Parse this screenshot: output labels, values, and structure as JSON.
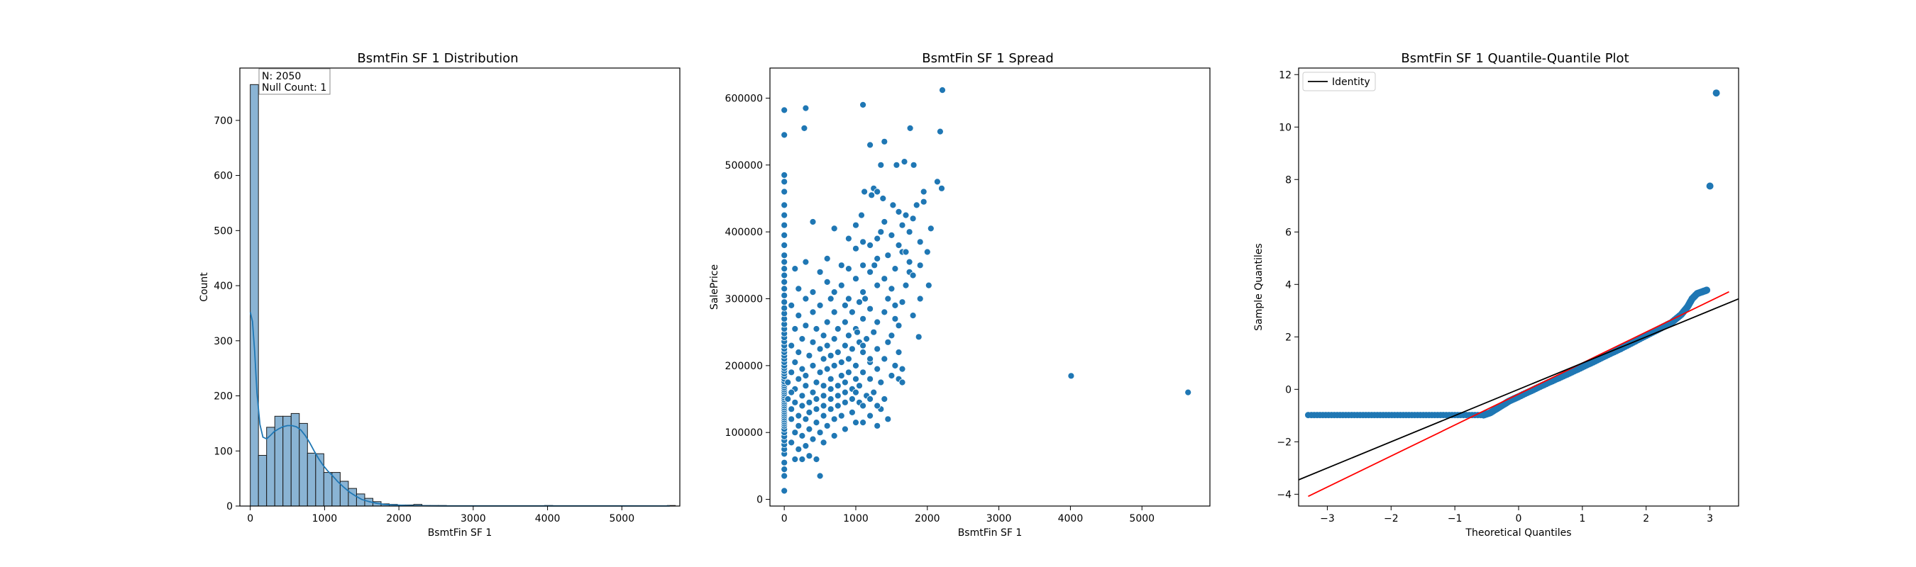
{
  "colors": {
    "accent": "#1f77b4",
    "hist_fill": "#8ab4d4",
    "kde": "#1f77b4",
    "identity": "#000000",
    "fit_line": "#ff0000"
  },
  "chart_data": [
    {
      "type": "bar",
      "title": "BsmtFin SF 1 Distribution",
      "xlabel": "BsmtFin SF 1",
      "ylabel": "Count",
      "xlim": [
        -140,
        5780
      ],
      "ylim": [
        0,
        795
      ],
      "xticks": [
        0,
        1000,
        2000,
        3000,
        4000,
        5000
      ],
      "yticks": [
        0,
        100,
        200,
        300,
        400,
        500,
        600,
        700
      ],
      "annotation": {
        "line1": "N: 2050",
        "line2": "Null Count: 1"
      },
      "bins": {
        "start": 0,
        "width": 110,
        "counts": [
          765,
          92,
          143,
          163,
          163,
          168,
          150,
          96,
          95,
          61,
          61,
          45,
          32,
          22,
          14,
          8,
          4,
          3,
          2,
          2,
          3,
          1,
          1,
          1,
          0,
          0,
          0,
          0,
          0,
          0,
          0,
          0,
          0,
          0,
          0,
          0,
          1,
          0,
          0,
          0,
          0,
          0,
          0,
          0,
          0,
          0,
          0,
          0,
          0,
          0,
          0,
          1
        ]
      },
      "kde": {
        "x": [
          0,
          30,
          60,
          90,
          130,
          170,
          220,
          270,
          320,
          380,
          440,
          500,
          560,
          620,
          680,
          740,
          800,
          860,
          920,
          980,
          1040,
          1100,
          1180,
          1260,
          1340,
          1420,
          1500,
          1600,
          1700,
          1800,
          1900,
          2000,
          2100,
          2200,
          2400,
          2600,
          3000,
          3500,
          4000,
          4500,
          5000,
          5644
        ],
        "y": [
          352,
          335,
          280,
          205,
          148,
          125,
          122,
          128,
          135,
          140,
          144,
          146,
          146,
          144,
          138,
          128,
          115,
          100,
          86,
          74,
          64,
          56,
          44,
          34,
          25,
          18,
          12,
          8,
          5,
          3,
          2,
          1.5,
          1,
          0.7,
          0.4,
          0.3,
          0.2,
          0.2,
          0.3,
          0.2,
          0.2,
          0.1
        ]
      }
    },
    {
      "type": "scatter",
      "title": "BsmtFin SF 1 Spread",
      "xlabel": "BsmtFin SF 1",
      "ylabel": "SalePrice",
      "xlim": [
        -200,
        5950
      ],
      "ylim": [
        -10000,
        645000
      ],
      "xticks": [
        0,
        1000,
        2000,
        3000,
        4000,
        5000
      ],
      "yticks": [
        0,
        100000,
        200000,
        300000,
        400000,
        500000,
        600000
      ],
      "zero_column_y": [
        12789,
        35000,
        45000,
        55000,
        68000,
        75000,
        82000,
        88000,
        94000,
        100000,
        105000,
        110000,
        113000,
        116000,
        119000,
        122000,
        125000,
        128000,
        131000,
        134000,
        137000,
        140000,
        143000,
        146000,
        149000,
        152000,
        155000,
        158000,
        161000,
        164000,
        167000,
        170000,
        173000,
        176000,
        180000,
        184000,
        188000,
        192000,
        196000,
        200000,
        205000,
        210000,
        215000,
        220000,
        225000,
        230000,
        236000,
        242000,
        248000,
        255000,
        262000,
        270000,
        278000,
        286000,
        295000,
        305000,
        315000,
        325000,
        335000,
        345000,
        355000,
        365000,
        380000,
        395000,
        410000,
        425000,
        440000,
        460000,
        475000,
        485000,
        545000,
        582000
      ],
      "points": [
        [
          300,
          585000
        ],
        [
          280,
          555000
        ],
        [
          1100,
          590000
        ],
        [
          2210,
          612000
        ],
        [
          2180,
          550000
        ],
        [
          1760,
          555000
        ],
        [
          1400,
          535000
        ],
        [
          1200,
          530000
        ],
        [
          1570,
          500000
        ],
        [
          1350,
          500000
        ],
        [
          1810,
          500000
        ],
        [
          1680,
          505000
        ],
        [
          2140,
          475000
        ],
        [
          2200,
          465000
        ],
        [
          1950,
          445000
        ],
        [
          1950,
          460000
        ],
        [
          1850,
          440000
        ],
        [
          1250,
          465000
        ],
        [
          1300,
          460000
        ],
        [
          1120,
          460000
        ],
        [
          1220,
          455000
        ],
        [
          1380,
          450000
        ],
        [
          1520,
          440000
        ],
        [
          1600,
          430000
        ],
        [
          1700,
          425000
        ],
        [
          1800,
          420000
        ],
        [
          1400,
          415000
        ],
        [
          1650,
          410000
        ],
        [
          1080,
          425000
        ],
        [
          400,
          415000
        ],
        [
          1000,
          410000
        ],
        [
          700,
          405000
        ],
        [
          2050,
          405000
        ],
        [
          1750,
          400000
        ],
        [
          1500,
          395000
        ],
        [
          1900,
          385000
        ],
        [
          1300,
          390000
        ],
        [
          1100,
          385000
        ],
        [
          900,
          390000
        ],
        [
          1200,
          380000
        ],
        [
          1650,
          370000
        ],
        [
          1000,
          375000
        ],
        [
          1450,
          365000
        ],
        [
          1300,
          360000
        ],
        [
          1750,
          355000
        ],
        [
          1100,
          350000
        ],
        [
          1550,
          345000
        ],
        [
          300,
          355000
        ],
        [
          150,
          345000
        ],
        [
          500,
          340000
        ],
        [
          900,
          345000
        ],
        [
          1200,
          340000
        ],
        [
          1400,
          330000
        ],
        [
          1700,
          320000
        ],
        [
          1000,
          330000
        ],
        [
          600,
          325000
        ],
        [
          800,
          320000
        ],
        [
          1300,
          320000
        ],
        [
          1500,
          315000
        ],
        [
          200,
          315000
        ],
        [
          400,
          310000
        ],
        [
          700,
          310000
        ],
        [
          1100,
          310000
        ],
        [
          1900,
          300000
        ],
        [
          1650,
          295000
        ],
        [
          1550,
          290000
        ],
        [
          1050,
          295000
        ],
        [
          650,
          300000
        ],
        [
          300,
          300000
        ],
        [
          100,
          290000
        ],
        [
          500,
          290000
        ],
        [
          850,
          290000
        ],
        [
          1200,
          285000
        ],
        [
          1400,
          280000
        ],
        [
          1800,
          275000
        ],
        [
          950,
          280000
        ],
        [
          700,
          280000
        ],
        [
          400,
          280000
        ],
        [
          200,
          275000
        ],
        [
          1100,
          270000
        ],
        [
          1300,
          265000
        ],
        [
          1600,
          260000
        ],
        [
          850,
          265000
        ],
        [
          600,
          265000
        ],
        [
          300,
          260000
        ],
        [
          150,
          255000
        ],
        [
          450,
          255000
        ],
        [
          750,
          255000
        ],
        [
          1000,
          255000
        ],
        [
          1250,
          250000
        ],
        [
          1500,
          245000
        ],
        [
          1880,
          243000
        ],
        [
          550,
          245000
        ],
        [
          900,
          245000
        ],
        [
          250,
          240000
        ],
        [
          700,
          240000
        ],
        [
          1150,
          240000
        ],
        [
          1450,
          235000
        ],
        [
          1050,
          235000
        ],
        [
          400,
          235000
        ],
        [
          100,
          230000
        ],
        [
          600,
          230000
        ],
        [
          850,
          230000
        ],
        [
          1300,
          225000
        ],
        [
          1600,
          220000
        ],
        [
          500,
          225000
        ],
        [
          950,
          225000
        ],
        [
          200,
          220000
        ],
        [
          750,
          220000
        ],
        [
          1100,
          220000
        ],
        [
          350,
          215000
        ],
        [
          650,
          215000
        ],
        [
          1400,
          210000
        ],
        [
          900,
          210000
        ],
        [
          1200,
          205000
        ],
        [
          550,
          210000
        ],
        [
          150,
          205000
        ],
        [
          800,
          205000
        ],
        [
          1550,
          200000
        ],
        [
          1650,
          195000
        ],
        [
          1000,
          200000
        ],
        [
          400,
          200000
        ],
        [
          700,
          200000
        ],
        [
          250,
          195000
        ],
        [
          1300,
          195000
        ],
        [
          600,
          195000
        ],
        [
          900,
          190000
        ],
        [
          100,
          190000
        ],
        [
          500,
          190000
        ],
        [
          1100,
          190000
        ],
        [
          1500,
          185000
        ],
        [
          800,
          185000
        ],
        [
          300,
          185000
        ],
        [
          1200,
          180000
        ],
        [
          650,
          180000
        ],
        [
          1000,
          180000
        ],
        [
          200,
          180000
        ],
        [
          450,
          175000
        ],
        [
          850,
          175000
        ],
        [
          1350,
          175000
        ],
        [
          50,
          175000
        ],
        [
          550,
          170000
        ],
        [
          750,
          170000
        ],
        [
          1050,
          170000
        ],
        [
          300,
          170000
        ],
        [
          150,
          165000
        ],
        [
          950,
          165000
        ],
        [
          650,
          165000
        ],
        [
          400,
          160000
        ],
        [
          1250,
          160000
        ],
        [
          850,
          160000
        ],
        [
          100,
          160000
        ],
        [
          550,
          155000
        ],
        [
          750,
          155000
        ],
        [
          250,
          155000
        ],
        [
          1150,
          155000
        ],
        [
          450,
          150000
        ],
        [
          950,
          150000
        ],
        [
          650,
          150000
        ],
        [
          50,
          150000
        ],
        [
          350,
          145000
        ],
        [
          850,
          145000
        ],
        [
          150,
          145000
        ],
        [
          1050,
          145000
        ],
        [
          550,
          140000
        ],
        [
          250,
          140000
        ],
        [
          750,
          140000
        ],
        [
          450,
          135000
        ],
        [
          1350,
          135000
        ],
        [
          100,
          135000
        ],
        [
          650,
          135000
        ],
        [
          950,
          130000
        ],
        [
          350,
          130000
        ],
        [
          200,
          125000
        ],
        [
          550,
          125000
        ],
        [
          800,
          125000
        ],
        [
          1200,
          125000
        ],
        [
          300,
          120000
        ],
        [
          100,
          120000
        ],
        [
          700,
          120000
        ],
        [
          450,
          115000
        ],
        [
          1000,
          115000
        ],
        [
          200,
          110000
        ],
        [
          600,
          110000
        ],
        [
          1300,
          110000
        ],
        [
          350,
          105000
        ],
        [
          850,
          105000
        ],
        [
          150,
          100000
        ],
        [
          500,
          100000
        ],
        [
          250,
          95000
        ],
        [
          700,
          95000
        ],
        [
          400,
          90000
        ],
        [
          100,
          85000
        ],
        [
          1100,
          115000
        ],
        [
          300,
          80000
        ],
        [
          550,
          85000
        ],
        [
          200,
          75000
        ],
        [
          350,
          65000
        ],
        [
          250,
          60000
        ],
        [
          450,
          60000
        ],
        [
          150,
          60000
        ],
        [
          500,
          35000
        ],
        [
          1020,
          250000
        ],
        [
          1130,
          300000
        ],
        [
          1260,
          350000
        ],
        [
          1350,
          400000
        ],
        [
          1600,
          380000
        ],
        [
          1700,
          370000
        ],
        [
          1450,
          300000
        ],
        [
          1550,
          270000
        ],
        [
          1100,
          230000
        ],
        [
          1200,
          210000
        ],
        [
          800,
          350000
        ],
        [
          600,
          360000
        ],
        [
          900,
          300000
        ],
        [
          1750,
          340000
        ],
        [
          1800,
          335000
        ],
        [
          1000,
          160000
        ],
        [
          1100,
          140000
        ],
        [
          1200,
          150000
        ],
        [
          1300,
          140000
        ],
        [
          1400,
          150000
        ],
        [
          1450,
          120000
        ],
        [
          1600,
          180000
        ],
        [
          1650,
          175000
        ],
        [
          1900,
          350000
        ],
        [
          2000,
          370000
        ],
        [
          2020,
          320000
        ],
        [
          4010,
          184750
        ],
        [
          5644,
          160000
        ]
      ]
    },
    {
      "type": "scatter",
      "title": "BsmtFin SF 1 Quantile-Quantile Plot",
      "xlabel": "Theoretical Quantiles",
      "ylabel": "Sample Quantiles",
      "xlim": [
        -3.45,
        3.45
      ],
      "ylim": [
        -4.45,
        12.25
      ],
      "xticks": [
        -3,
        -2,
        -1,
        0,
        1,
        2,
        3
      ],
      "yticks": [
        -4,
        -2,
        0,
        2,
        4,
        6,
        8,
        10,
        12
      ],
      "legend": {
        "position": "top-left",
        "entries": [
          "Identity"
        ]
      },
      "identity_line": [
        [
          -3.45,
          -3.45
        ],
        [
          3.45,
          3.45
        ]
      ],
      "fit_line": [
        [
          -3.3,
          -4.08
        ],
        [
          3.3,
          3.72
        ]
      ],
      "flat_segment": {
        "x_from": -3.25,
        "x_to": -0.55,
        "y": -0.98
      },
      "curve": [
        [
          -0.55,
          -0.98
        ],
        [
          -0.45,
          -0.9
        ],
        [
          -0.35,
          -0.75
        ],
        [
          -0.25,
          -0.6
        ],
        [
          -0.15,
          -0.45
        ],
        [
          0,
          -0.28
        ],
        [
          0.2,
          -0.05
        ],
        [
          0.4,
          0.18
        ],
        [
          0.6,
          0.4
        ],
        [
          0.8,
          0.62
        ],
        [
          1.0,
          0.85
        ],
        [
          1.2,
          1.08
        ],
        [
          1.4,
          1.32
        ],
        [
          1.6,
          1.55
        ],
        [
          1.8,
          1.8
        ],
        [
          2.0,
          2.05
        ],
        [
          2.2,
          2.3
        ],
        [
          2.4,
          2.55
        ],
        [
          2.55,
          2.85
        ],
        [
          2.65,
          3.15
        ],
        [
          2.72,
          3.45
        ],
        [
          2.8,
          3.65
        ],
        [
          2.88,
          3.72
        ],
        [
          2.95,
          3.78
        ]
      ],
      "outliers": [
        [
          3.0,
          7.75
        ],
        [
          3.1,
          11.3
        ]
      ],
      "first_point": [
        -3.3,
        -0.98
      ]
    }
  ]
}
